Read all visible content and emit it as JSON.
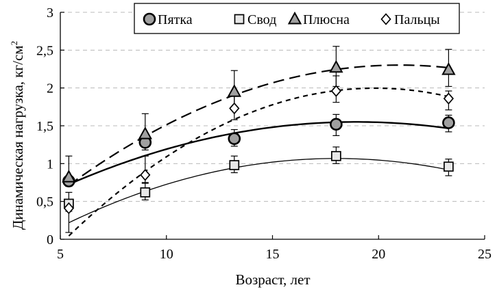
{
  "chart_data": {
    "type": "scatter",
    "xlabel": "Возраст, лет",
    "ylabel": "Динамическая нагрузка, кг/см",
    "ylabel_superscript": "2",
    "xlim": [
      5,
      25
    ],
    "ylim": [
      0,
      3
    ],
    "x_ticks": [
      5,
      10,
      15,
      20,
      25
    ],
    "x_tick_labels": [
      "5",
      "10",
      "15",
      "20",
      "25"
    ],
    "y_ticks": [
      0,
      0.5,
      1,
      1.5,
      2,
      2.5,
      3
    ],
    "y_tick_labels": [
      "0",
      "0,5",
      "1",
      "1,5",
      "2",
      "2,5",
      "3"
    ],
    "grid": "horizontal-dashed",
    "legend_position": "top",
    "series": [
      {
        "name": "Пятка",
        "marker": "circle",
        "marker_color": "#a0a0a0",
        "x": [
          5.4,
          9.0,
          13.2,
          18.0,
          23.3
        ],
        "values": [
          0.77,
          1.28,
          1.33,
          1.52,
          1.54
        ],
        "err_low": [
          0.07,
          0.1,
          0.1,
          0.15,
          0.12
        ],
        "err_high": [
          0.07,
          0.1,
          0.12,
          0.13,
          0.1
        ],
        "trend": {
          "style": "solid",
          "width": 2.4,
          "coeffs": [
            -0.0045,
            0.1705,
            -0.064
          ]
        }
      },
      {
        "name": "Свод",
        "marker": "square",
        "marker_color": "#e8e8e8",
        "x": [
          5.4,
          9.0,
          13.2,
          18.0,
          23.3
        ],
        "values": [
          0.47,
          0.62,
          0.98,
          1.1,
          0.96
        ],
        "err_low": [
          0.1,
          0.1,
          0.1,
          0.1,
          0.12
        ],
        "err_high": [
          0.15,
          0.12,
          0.12,
          0.12,
          0.1
        ],
        "trend": {
          "style": "solid",
          "width": 1.3,
          "coeffs": [
            -0.00535,
            0.1926,
            -0.6656
          ]
        }
      },
      {
        "name": "Плюсна",
        "marker": "triangle",
        "marker_color": "#a0a0a0",
        "x": [
          5.4,
          9.0,
          13.2,
          18.0,
          23.3
        ],
        "values": [
          0.82,
          1.39,
          1.95,
          2.27,
          2.24
        ],
        "err_low": [
          0.12,
          0.15,
          0.2,
          0.25,
          0.22
        ],
        "err_high": [
          0.28,
          0.27,
          0.28,
          0.28,
          0.27
        ],
        "trend": {
          "style": "long-dash",
          "width": 2.2,
          "coeffs": [
            -0.00654,
            0.2745,
            -0.578
          ]
        }
      },
      {
        "name": "Пальцы",
        "marker": "diamond",
        "marker_color": "#ffffff",
        "x": [
          5.4,
          9.0,
          13.2,
          18.0,
          23.3
        ],
        "values": [
          0.41,
          0.85,
          1.73,
          1.96,
          1.86
        ],
        "err_low": [
          0.32,
          0.1,
          0.15,
          0.15,
          0.15
        ],
        "err_high": [
          0.1,
          0.25,
          0.2,
          0.2,
          0.1
        ],
        "trend": {
          "style": "short-dash",
          "width": 2.2,
          "coeffs": [
            -0.00936,
            0.3715,
            -1.689
          ]
        }
      }
    ]
  }
}
